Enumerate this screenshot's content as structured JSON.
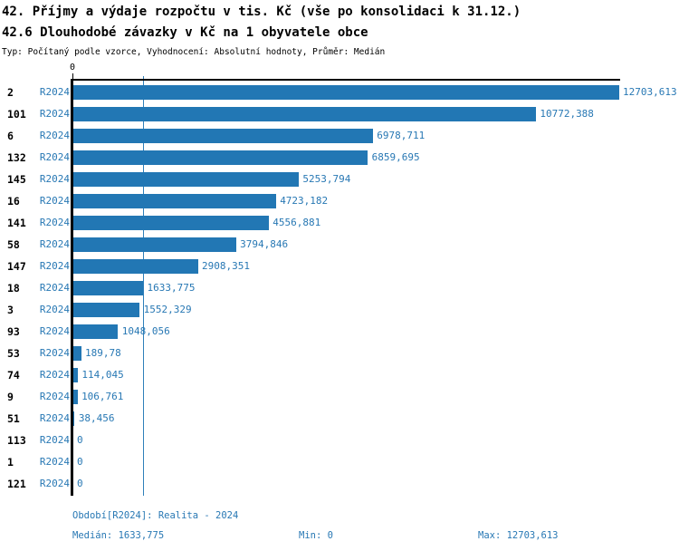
{
  "title_line1": "42. Příjmy a výdaje rozpočtu v tis. Kč (vše po konsolidaci k 31.12.)",
  "title_line2": "42.6 Dlouhodobé závazky v Kč na 1 obyvatele obce",
  "subtitle": "Typ: Počítaný podle vzorce, Vyhodnocení: Absolutní hodnoty, Průměr: Medián",
  "axis": {
    "zero_label": "0"
  },
  "footer": {
    "period": "Období[R2024]: Realita - 2024",
    "median": "Medián: 1633,775",
    "min": "Min: 0",
    "max": "Max: 12703,613"
  },
  "colors": {
    "bar": "#2277b4",
    "blue_text": "#2878b4",
    "median_line": "#2e7fba",
    "axis": "#000000"
  },
  "chart_data": {
    "type": "bar",
    "orientation": "horizontal",
    "title": "42.6 Dlouhodobé závazky v Kč na 1 obyvatele obce",
    "series_label": "R2024",
    "categories": [
      "2",
      "101",
      "6",
      "132",
      "145",
      "16",
      "141",
      "58",
      "147",
      "18",
      "3",
      "93",
      "53",
      "74",
      "9",
      "51",
      "113",
      "1",
      "121"
    ],
    "values": [
      12703.613,
      10772.388,
      6978.711,
      6859.695,
      5253.794,
      4723.182,
      4556.881,
      3794.846,
      2908.351,
      1633.775,
      1552.329,
      1048.056,
      189.78,
      114.045,
      106.761,
      38.456,
      0,
      0,
      0
    ],
    "value_labels": [
      "12703,613",
      "10772,388",
      "6978,711",
      "6859,695",
      "5253,794",
      "4723,182",
      "4556,881",
      "3794,846",
      "2908,351",
      "1633,775",
      "1552,329",
      "1048,056",
      "189,78",
      "114,045",
      "106,761",
      "38,456",
      "0",
      "0",
      "0"
    ],
    "xlim": [
      0,
      12703.613
    ],
    "median": 1633.775,
    "grid": false,
    "legend_position": "none"
  }
}
